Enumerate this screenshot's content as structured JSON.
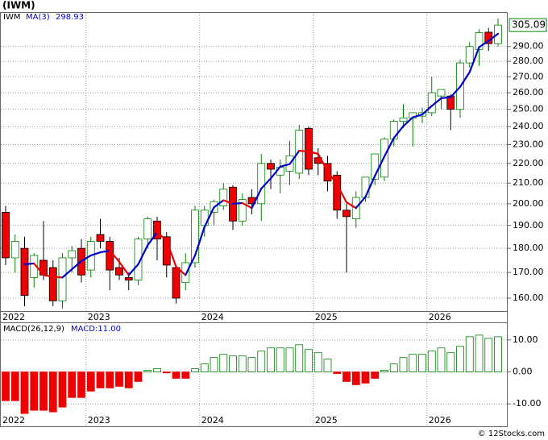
{
  "chart_data": [
    {
      "type": "candlestick",
      "title": "(IWM)",
      "log": true,
      "grid": true,
      "categories": [
        "2022",
        null,
        null,
        null,
        null,
        null,
        null,
        null,
        null,
        "2023",
        null,
        null,
        null,
        null,
        null,
        null,
        null,
        null,
        null,
        null,
        null,
        "2024",
        null,
        null,
        null,
        null,
        null,
        null,
        null,
        null,
        null,
        null,
        null,
        "2025",
        null,
        null,
        null,
        null,
        null,
        null,
        null,
        null,
        null,
        null,
        null,
        "2026",
        null,
        null,
        null,
        null,
        null,
        null,
        null
      ],
      "ylim": [
        155.2,
        314
      ],
      "yticks": [
        {
          "value": 160,
          "label": "160.00"
        },
        {
          "value": 170,
          "label": "170.00"
        },
        {
          "value": 180,
          "label": "180.00"
        },
        {
          "value": 190,
          "label": "190.00"
        },
        {
          "value": 200,
          "label": "200.00"
        },
        {
          "value": 210,
          "label": "210.00"
        },
        {
          "value": 220,
          "label": "220.00"
        },
        {
          "value": 230,
          "label": "230.00"
        },
        {
          "value": 240,
          "label": "240.00"
        },
        {
          "value": 250,
          "label": "250.00"
        },
        {
          "value": 260,
          "label": "260.00"
        },
        {
          "value": 270,
          "label": "270.00"
        },
        {
          "value": 280,
          "label": "280.00"
        },
        {
          "value": 290,
          "label": "290.00"
        }
      ],
      "series": [
        {
          "name": "IWM",
          "up_color": "#008000",
          "down_color": "#ee0000",
          "open": [
            196,
            176,
            180,
            168,
            175,
            172,
            159,
            176,
            180,
            171,
            186,
            183,
            172,
            168,
            167,
            184,
            192,
            185,
            172,
            166,
            174,
            190,
            196,
            199,
            208,
            192,
            203,
            200,
            220,
            214,
            216,
            215,
            239,
            223,
            220,
            214,
            197,
            193,
            203,
            212,
            213,
            233,
            243,
            245,
            246,
            248,
            258,
            258,
            250,
            279,
            288,
            300,
            292
          ],
          "high": [
            199,
            186,
            185,
            178,
            192,
            175,
            178,
            181,
            184,
            185,
            193,
            185,
            176,
            170,
            185,
            194,
            194,
            187,
            172,
            178,
            199,
            199,
            202,
            210,
            209,
            205,
            207,
            225,
            222,
            222,
            232,
            241,
            240,
            228,
            224,
            216,
            200,
            206,
            213,
            225,
            234,
            244,
            253,
            248,
            251,
            270,
            262,
            259,
            281,
            293,
            302,
            303,
            310
          ],
          "low": [
            173,
            170,
            157,
            164,
            167,
            157,
            156,
            170,
            166,
            168,
            180,
            163,
            167,
            163,
            165,
            180,
            175,
            168,
            158,
            163,
            172,
            185,
            190,
            197,
            188,
            190,
            195,
            192,
            207,
            205,
            209,
            212,
            214,
            214,
            206,
            193,
            170,
            189,
            201,
            209,
            211,
            229,
            239,
            229,
            242,
            246,
            250,
            238,
            245,
            276,
            277,
            287,
            290
          ],
          "close": [
            176,
            183,
            161,
            177,
            169,
            159,
            176,
            179,
            169,
            183,
            183,
            171,
            169,
            167,
            184,
            193,
            184,
            173,
            160,
            174,
            197,
            197,
            201,
            207,
            192,
            202,
            200,
            220,
            217,
            218,
            224,
            238,
            217,
            220,
            211,
            197,
            194,
            203,
            213,
            225,
            233,
            243,
            245,
            248,
            248,
            260,
            262,
            250,
            279,
            290,
            299.7,
            292,
            305.09
          ]
        },
        {
          "name": "MA(3)",
          "up_color": "#0000cc",
          "down_color": "#ee0000",
          "values": [
            null,
            null,
            173.33,
            173.67,
            169,
            168.33,
            168,
            171.33,
            174.67,
            177,
            178.33,
            179,
            174.33,
            169,
            173.33,
            181.33,
            187,
            183.33,
            172.33,
            169,
            177,
            189.33,
            198.33,
            201.67,
            200,
            200.33,
            198,
            207.33,
            212.33,
            218.33,
            219.67,
            226.67,
            226.33,
            225,
            216,
            209.33,
            200.67,
            198,
            203.33,
            213.67,
            223.67,
            233.67,
            240.33,
            245.33,
            247,
            252,
            256.67,
            257.33,
            263.67,
            273,
            289.57,
            293.9,
            298.93
          ]
        }
      ]
    },
    {
      "type": "bar",
      "name": "MACD(26,12,9)",
      "last_value_label": "MACD:11.00",
      "grid": true,
      "ylim": [
        -17,
        15.25
      ],
      "yticks": [
        {
          "value": 10,
          "label": "10.00"
        },
        {
          "value": 0,
          "label": "0.00"
        },
        {
          "value": -10,
          "label": "-10.00"
        }
      ],
      "up_color": "#008000",
      "down_color": "#ee0000",
      "values": [
        -9,
        -9,
        -13,
        -12,
        -12,
        -12.5,
        -11,
        -8,
        -8,
        -6,
        -5,
        -5,
        -4.5,
        -5,
        -3,
        0.5,
        1,
        -0.3,
        -2,
        -2,
        1,
        2.5,
        4.5,
        5.5,
        5,
        5,
        4.5,
        6.5,
        7.5,
        7.5,
        7.5,
        8.5,
        7,
        6,
        4,
        -0.5,
        -3,
        -4,
        -3.5,
        -2,
        0.5,
        2.5,
        4.5,
        5.5,
        5.5,
        6.5,
        7.5,
        6,
        8,
        11,
        11.5,
        10.5,
        11
      ]
    }
  ],
  "footer": "© 12Stocks.com"
}
